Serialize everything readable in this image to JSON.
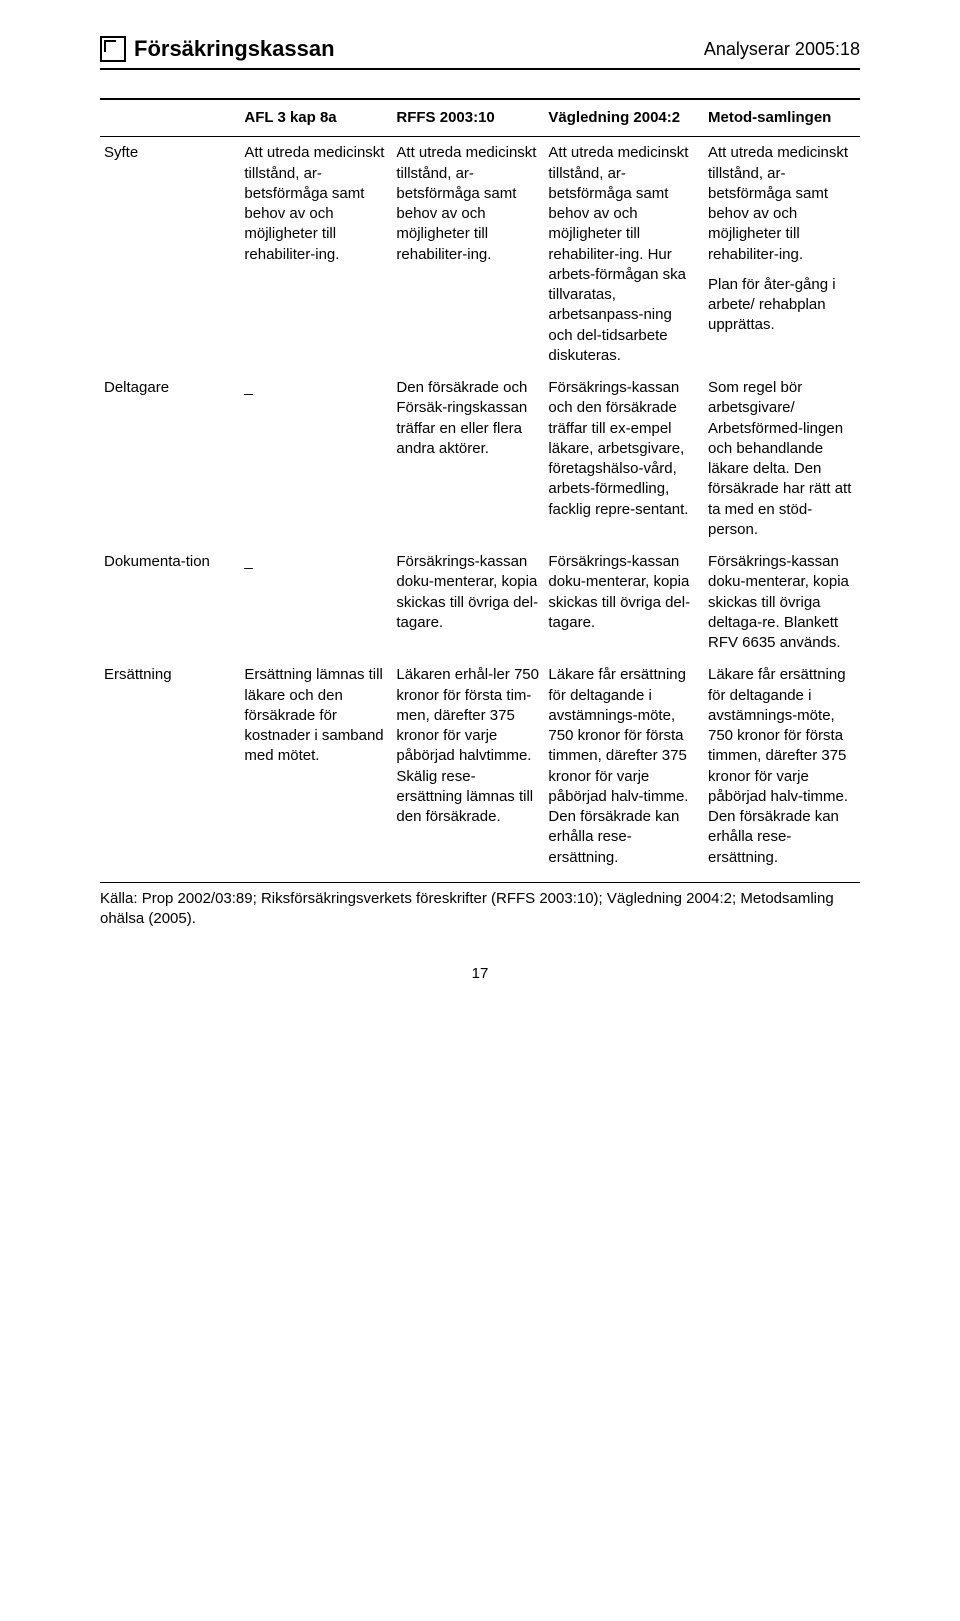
{
  "header": {
    "brand": "Försäkringskassan",
    "doc_id": "Analyserar 2005:18"
  },
  "table": {
    "columns": [
      "",
      "AFL 3 kap 8a",
      "RFFS 2003:10",
      "Vägledning 2004:2",
      "Metod-samlingen"
    ],
    "rows": [
      {
        "label": "Syfte",
        "col1": "Att utreda medicinskt tillstånd, ar-betsförmåga samt behov av och möjligheter till rehabiliter-ing.",
        "col2": "Att utreda medicinskt tillstånd, ar-betsförmåga samt behov av och möjligheter till rehabiliter-ing.",
        "col3": "Att utreda medicinskt tillstånd, ar-betsförmåga samt behov av och möjligheter till rehabiliter-ing. Hur arbets-förmågan ska tillvaratas, arbetsanpass-ning och del-tidsarbete diskuteras.",
        "col4a": "Att utreda medicinskt tillstånd, ar-betsförmåga samt behov av och möjligheter till rehabiliter-ing.",
        "col4b": "Plan för åter-gång i arbete/ rehabplan upprättas."
      },
      {
        "label": "Deltagare",
        "col1": "_",
        "col2": "Den försäkrade och Försäk-ringskassan träffar en eller flera andra aktörer.",
        "col3": "Försäkrings-kassan och den försäkrade träffar till ex-empel läkare, arbetsgivare, företagshälso-vård, arbets-förmedling, facklig repre-sentant.",
        "col4a": "Som regel bör arbetsgivare/ Arbetsförmed-lingen och behandlande läkare delta. Den försäkrade har rätt att ta med en stöd-person.",
        "col4b": ""
      },
      {
        "label": "Dokumenta-tion",
        "col1": "_",
        "col2": "Försäkrings-kassan doku-menterar, kopia skickas till övriga del-tagare.",
        "col3": "Försäkrings-kassan doku-menterar, kopia skickas till övriga del-tagare.",
        "col4a": "Försäkrings-kassan doku-menterar, kopia skickas till övriga deltaga-re. Blankett RFV 6635 används.",
        "col4b": ""
      },
      {
        "label": "Ersättning",
        "col1": "Ersättning lämnas till läkare och den försäkrade för kostnader i samband med mötet.",
        "col2": "Läkaren erhål-ler 750 kronor för första tim-men, därefter 375 kronor för varje påbörjad halvtimme. Skälig rese-ersättning lämnas till den försäkrade.",
        "col3": "Läkare får ersättning för deltagande i avstämnings-möte, 750 kronor för första timmen, därefter 375 kronor för varje påbörjad halv-timme. Den försäkrade kan erhålla rese-ersättning.",
        "col4a": "Läkare får ersättning för deltagande i avstämnings-möte, 750 kronor för första timmen, därefter 375 kronor för varje påbörjad halv-timme. Den försäkrade kan erhålla rese-ersättning.",
        "col4b": ""
      }
    ]
  },
  "source": "Källa: Prop 2002/03:89; Riksförsäkringsverkets föreskrifter (RFFS 2003:10); Vägledning 2004:2; Metodsamling ohälsa (2005).",
  "page_number": "17"
}
